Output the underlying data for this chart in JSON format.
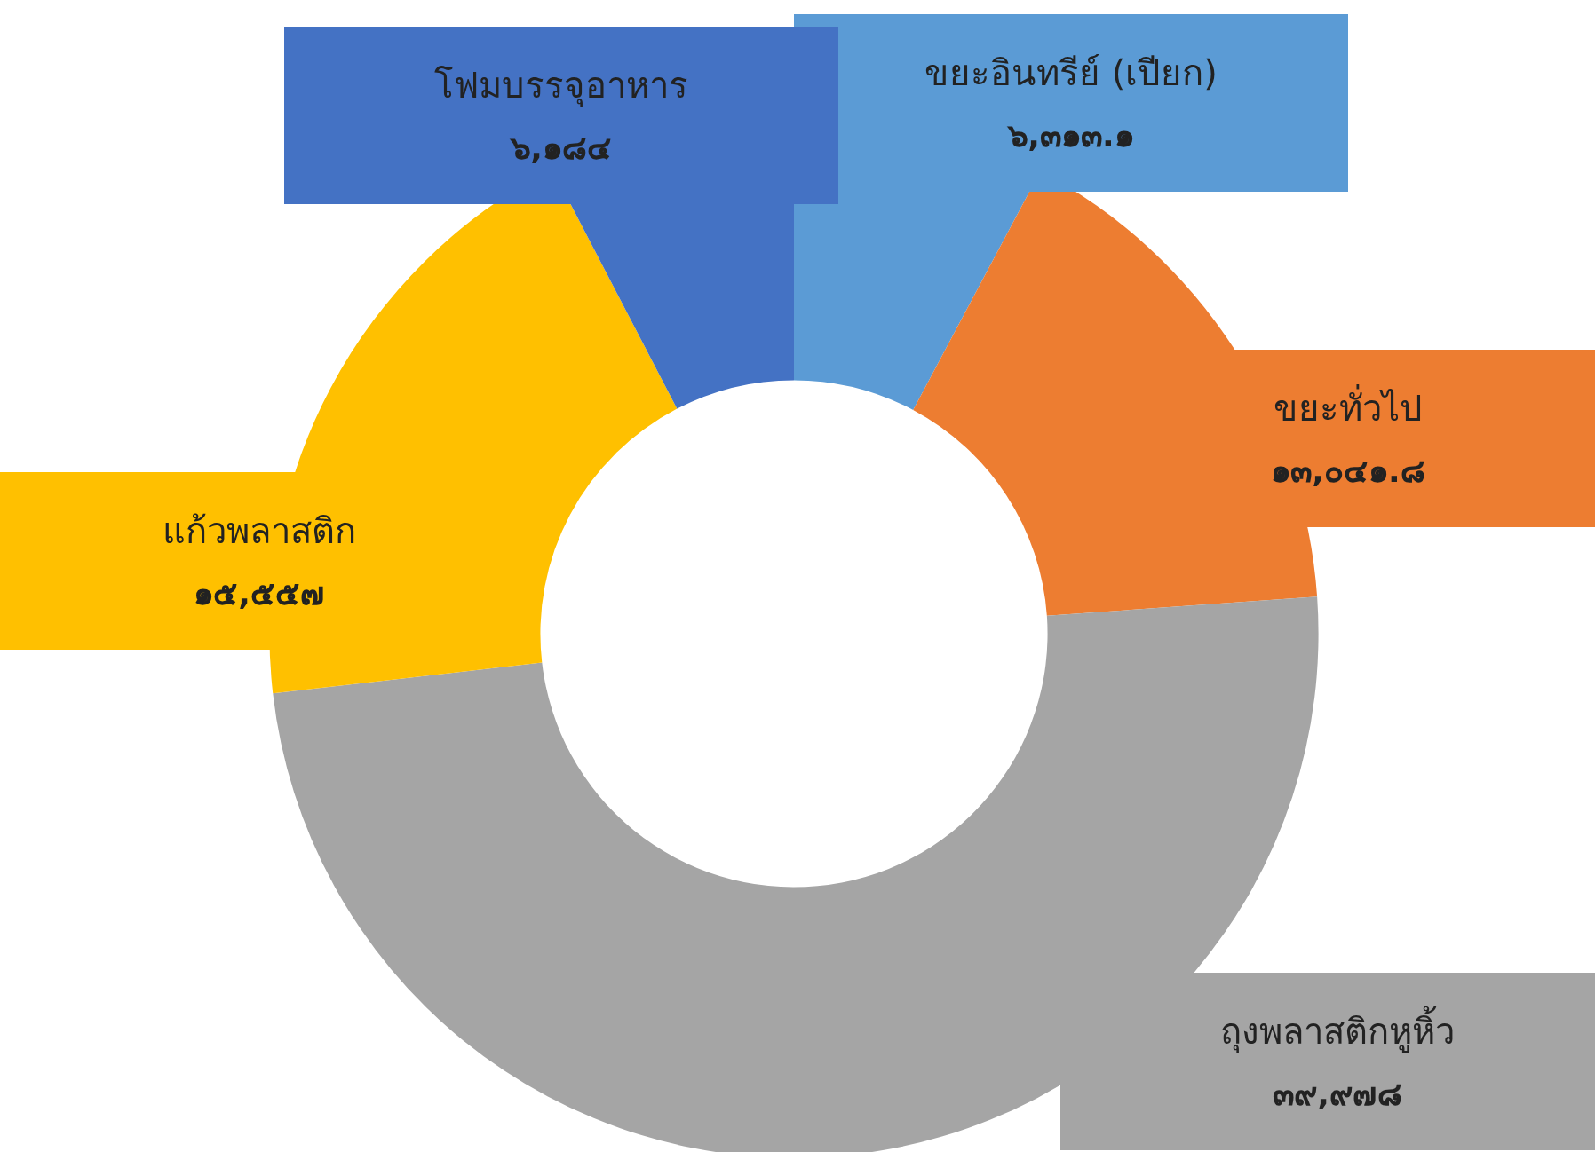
{
  "chart_data": {
    "type": "donut",
    "categories": [
      "ขยะอินทรีย์ (เปียก)",
      "ขยะทั่วไป",
      "ถุงพลาสติกหูหิ้ว",
      "แก้วพลาสติก",
      "โฟมบรรจุอาหาร"
    ],
    "values": [
      6313.1,
      13041.8,
      39978,
      15557,
      6184
    ],
    "value_labels": [
      "๖,๓๑๓.๑",
      "๑๓,๐๔๑.๘",
      "๓๙,๙๗๘",
      "๑๕,๕๕๗",
      "๖,๑๘๔"
    ],
    "colors": [
      "#5b9bd5",
      "#ed7d31",
      "#a5a5a5",
      "#ffc000",
      "#4472c4"
    ],
    "legend": false
  }
}
